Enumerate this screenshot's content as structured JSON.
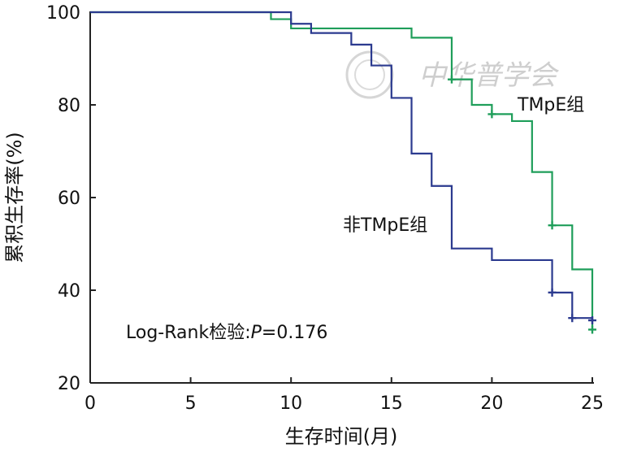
{
  "chart_data": {
    "type": "line",
    "step": true,
    "xlabel": "生存时间(月)",
    "ylabel": "累积生存率(%)",
    "xlim": [
      0,
      25
    ],
    "ylim": [
      20,
      100
    ],
    "xticks": [
      0,
      5,
      10,
      15,
      20,
      25
    ],
    "yticks": [
      20,
      40,
      60,
      80,
      100
    ],
    "xtick_labels": [
      "0",
      "5",
      "10",
      "15",
      "20",
      "25"
    ],
    "ytick_labels": [
      "20",
      "40",
      "60",
      "80",
      "100"
    ],
    "grid": false,
    "series": [
      {
        "name": "TMpE组",
        "color": "#1f9e5a",
        "steps": [
          [
            0,
            100
          ],
          [
            9,
            98.5
          ],
          [
            10,
            96.5
          ],
          [
            16,
            94.5
          ],
          [
            18,
            85.5
          ],
          [
            19,
            80
          ],
          [
            20,
            78
          ],
          [
            21,
            76.5
          ],
          [
            22,
            65.5
          ],
          [
            23,
            54
          ],
          [
            24,
            44.5
          ],
          [
            25,
            31.5
          ]
        ],
        "censored": [
          [
            18,
            85.5
          ],
          [
            20,
            78
          ],
          [
            23,
            54
          ],
          [
            25,
            31.5
          ]
        ]
      },
      {
        "name": "非TMpE组",
        "color": "#2b3a8f",
        "steps": [
          [
            0,
            100
          ],
          [
            10,
            97.5
          ],
          [
            11,
            95.5
          ],
          [
            13,
            93
          ],
          [
            14,
            88.5
          ],
          [
            15,
            81.5
          ],
          [
            16,
            69.5
          ],
          [
            17,
            62.5
          ],
          [
            18,
            49
          ],
          [
            20,
            46.5
          ],
          [
            23,
            39.5
          ],
          [
            24,
            34
          ],
          [
            25,
            33.5
          ]
        ],
        "censored": [
          [
            23,
            39.5
          ],
          [
            24,
            34
          ],
          [
            25,
            33.5
          ]
        ]
      }
    ],
    "annotations": {
      "logrank_prefix": "Log-Rank检验:",
      "logrank_p_symbol": "P",
      "logrank_value": "=0.176"
    }
  },
  "watermark": {
    "text": "中华普学会"
  }
}
